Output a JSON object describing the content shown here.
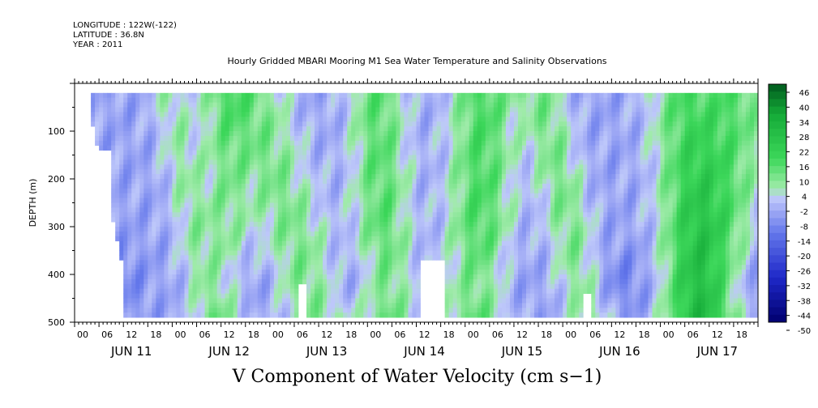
{
  "header": {
    "longitude": "LONGITUDE : 122W(-122)",
    "latitude": "LATITUDE : 36.8N",
    "year": "YEAR : 2011"
  },
  "chart_data": {
    "type": "heatmap",
    "title": "Hourly Gridded MBARI Mooring M1 Sea Water Temperature and Salinity Observations",
    "bottom_title": "V Component of Water Velocity (cm s−1)",
    "ylabel": "DEPTH (m)",
    "ylim": [
      500,
      0
    ],
    "y_ticks": [
      100,
      200,
      300,
      400,
      500
    ],
    "y_tick_labels": [
      "100",
      "200",
      "300",
      "400",
      "500"
    ],
    "x_range_hours": [
      0,
      168
    ],
    "x_hour_ticks": [
      "00",
      "06",
      "12",
      "18",
      "00",
      "06",
      "12",
      "18",
      "00",
      "06",
      "12",
      "18",
      "00",
      "06",
      "12",
      "18",
      "00",
      "06",
      "12",
      "18",
      "00",
      "06",
      "12",
      "18",
      "00",
      "06",
      "12",
      "18"
    ],
    "day_labels": [
      "JUN 11",
      "JUN 12",
      "JUN 13",
      "JUN 14",
      "JUN 15",
      "JUN 16",
      "JUN 17"
    ],
    "colorbar": {
      "labels": [
        "46",
        "40",
        "34",
        "28",
        "22",
        "16",
        "10",
        "4",
        "-2",
        "-8",
        "-14",
        "-20",
        "-26",
        "-32",
        "-38",
        "-44",
        "-50"
      ],
      "min": -50,
      "max": 46,
      "step": 3
    },
    "colors": {
      "positive": "#2ddc4a",
      "neutral": "#9aa8f0",
      "negative": "#2836c8"
    },
    "data_note": "V velocity field (cm/s) ranging roughly -20 to +20 over depths ~20-490 m"
  }
}
